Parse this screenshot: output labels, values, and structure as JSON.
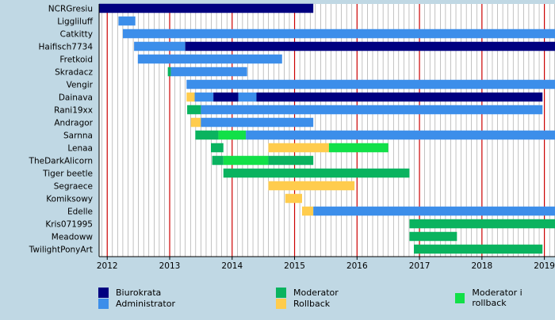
{
  "chart_data": {
    "type": "timeline",
    "title": "",
    "xlabel": "",
    "ylabel": "",
    "xlim": [
      2011.87,
      2019.17
    ],
    "x_ticks": [
      "2012",
      "2013",
      "2014",
      "2015",
      "2016",
      "2017",
      "2018",
      "2019"
    ],
    "grid": true,
    "colors": {
      "background": "#c0d8e4",
      "plot_background": "#ffffff",
      "minor_grid": "#999999",
      "year_grid": "#cc0000",
      "border": "#000000"
    },
    "roles": [
      {
        "key": "bur",
        "name": "Biurokrata",
        "color": "#000080"
      },
      {
        "key": "adm",
        "name": "Administrator",
        "color": "#3c8eea"
      },
      {
        "key": "mod",
        "name": "Moderator",
        "color": "#0ab35f"
      },
      {
        "key": "rb",
        "name": "Rollback",
        "color": "#ffcc4d"
      },
      {
        "key": "modrb",
        "name": "Moderator i rollback",
        "color": "#12e048"
      }
    ],
    "users": [
      {
        "name": "NCRGresiu",
        "spans": [
          {
            "role": "bur",
            "start": 2011.87,
            "end": 2015.3
          }
        ]
      },
      {
        "name": "Liggliluff",
        "spans": [
          {
            "role": "adm",
            "start": 2012.18,
            "end": 2012.45
          }
        ]
      },
      {
        "name": "Catkitty",
        "spans": [
          {
            "role": "adm",
            "start": 2012.25,
            "end": 2019.17
          }
        ]
      },
      {
        "name": "Haifisch7734",
        "spans": [
          {
            "role": "adm",
            "start": 2012.43,
            "end": 2013.25
          },
          {
            "role": "bur",
            "start": 2013.25,
            "end": 2019.17
          }
        ]
      },
      {
        "name": "Fretkoid",
        "spans": [
          {
            "role": "adm",
            "start": 2012.49,
            "end": 2014.8
          }
        ]
      },
      {
        "name": "Skradacz",
        "spans": [
          {
            "role": "mod",
            "start": 2012.97,
            "end": 2013.02
          },
          {
            "role": "adm",
            "start": 2013.02,
            "end": 2014.24
          }
        ]
      },
      {
        "name": "Vengir",
        "spans": [
          {
            "role": "adm",
            "start": 2013.27,
            "end": 2019.17
          }
        ]
      },
      {
        "name": "Dainava",
        "spans": [
          {
            "role": "rb",
            "start": 2013.27,
            "end": 2013.4
          },
          {
            "role": "adm",
            "start": 2013.4,
            "end": 2013.7
          },
          {
            "role": "bur",
            "start": 2013.7,
            "end": 2014.1
          },
          {
            "role": "adm",
            "start": 2014.1,
            "end": 2014.39
          },
          {
            "role": "bur",
            "start": 2014.39,
            "end": 2018.97
          }
        ]
      },
      {
        "name": "Rani19xx",
        "spans": [
          {
            "role": "mod",
            "start": 2013.28,
            "end": 2013.5
          },
          {
            "role": "adm",
            "start": 2013.5,
            "end": 2018.97
          }
        ]
      },
      {
        "name": "Andragor",
        "spans": [
          {
            "role": "rb",
            "start": 2013.34,
            "end": 2013.5
          },
          {
            "role": "adm",
            "start": 2013.5,
            "end": 2015.3
          }
        ]
      },
      {
        "name": "Sarnna",
        "spans": [
          {
            "role": "mod",
            "start": 2013.41,
            "end": 2013.78
          },
          {
            "role": "modrb",
            "start": 2013.78,
            "end": 2014.22
          },
          {
            "role": "adm",
            "start": 2014.22,
            "end": 2019.17
          }
        ]
      },
      {
        "name": "Lenaa",
        "spans": [
          {
            "role": "mod",
            "start": 2013.66,
            "end": 2013.86
          },
          {
            "role": "rb",
            "start": 2014.58,
            "end": 2015.55
          },
          {
            "role": "modrb",
            "start": 2015.55,
            "end": 2016.5
          }
        ]
      },
      {
        "name": "TheDarkAlicorn",
        "spans": [
          {
            "role": "mod",
            "start": 2013.68,
            "end": 2013.86
          },
          {
            "role": "modrb",
            "start": 2013.86,
            "end": 2014.58
          },
          {
            "role": "mod",
            "start": 2014.58,
            "end": 2015.3
          }
        ]
      },
      {
        "name": "Tiger beetle",
        "spans": [
          {
            "role": "mod",
            "start": 2013.86,
            "end": 2016.84
          }
        ]
      },
      {
        "name": "Segraece",
        "spans": [
          {
            "role": "rb",
            "start": 2014.58,
            "end": 2015.96
          }
        ]
      },
      {
        "name": "Komiksowy",
        "spans": [
          {
            "role": "rb",
            "start": 2014.85,
            "end": 2015.12
          }
        ]
      },
      {
        "name": "Edelle",
        "spans": [
          {
            "role": "rb",
            "start": 2015.12,
            "end": 2015.3
          },
          {
            "role": "adm",
            "start": 2015.3,
            "end": 2019.17
          }
        ]
      },
      {
        "name": "Kris071995",
        "spans": [
          {
            "role": "mod",
            "start": 2016.84,
            "end": 2019.17
          }
        ]
      },
      {
        "name": "Meadoww",
        "spans": [
          {
            "role": "mod",
            "start": 2016.84,
            "end": 2017.6
          }
        ]
      },
      {
        "name": "TwilightPonyArt",
        "spans": [
          {
            "role": "mod",
            "start": 2016.91,
            "end": 2018.97
          }
        ]
      }
    ]
  }
}
